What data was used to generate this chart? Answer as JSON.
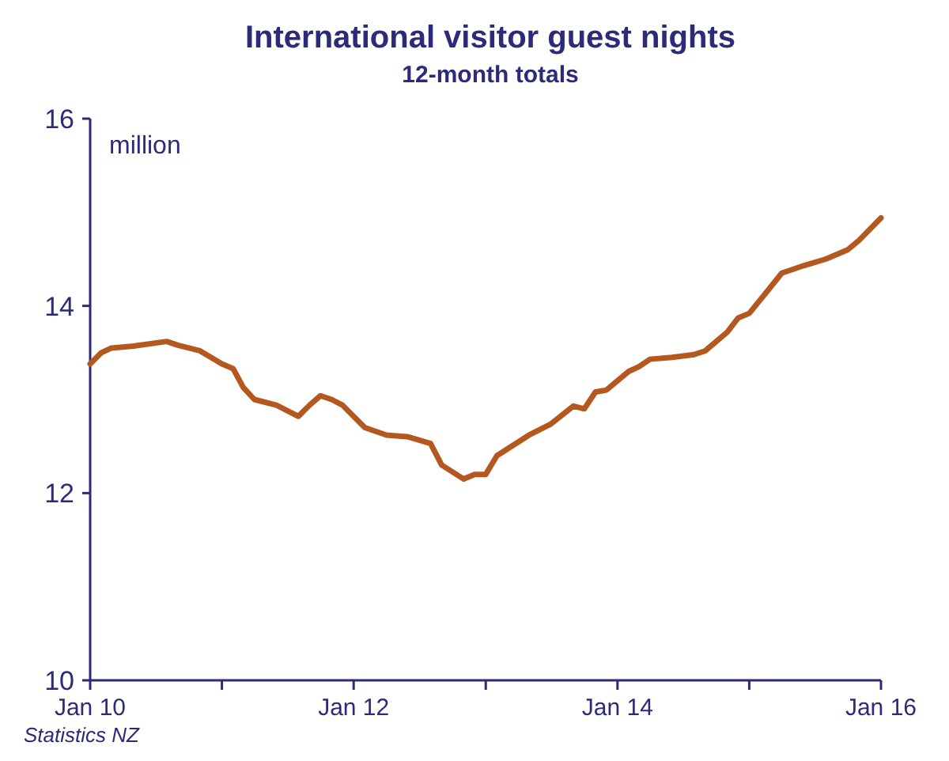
{
  "chart_data": {
    "type": "line",
    "title": "International visitor guest nights",
    "subtitle": "12-month totals",
    "ylabel": "million",
    "annotations": [
      "Statistics NZ"
    ],
    "x": [
      "2010-01",
      "2010-02",
      "2010-03",
      "2010-05",
      "2010-08",
      "2010-09",
      "2010-11",
      "2011-01",
      "2011-02",
      "2011-03",
      "2011-04",
      "2011-06",
      "2011-08",
      "2011-09",
      "2011-10",
      "2011-11",
      "2011-12",
      "2012-02",
      "2012-04",
      "2012-06",
      "2012-08",
      "2012-09",
      "2012-11",
      "2012-12",
      "2013-01",
      "2013-02",
      "2013-05",
      "2013-07",
      "2013-09",
      "2013-10",
      "2013-11",
      "2013-12",
      "2014-02",
      "2014-03",
      "2014-04",
      "2014-06",
      "2014-08",
      "2014-09",
      "2014-11",
      "2014-12",
      "2015-01",
      "2015-03",
      "2015-04",
      "2015-06",
      "2015-08",
      "2015-10",
      "2015-11",
      "2016-01"
    ],
    "series": [
      {
        "color": "#b5581f",
        "values": [
          13.38,
          13.5,
          13.55,
          13.57,
          13.62,
          13.58,
          13.52,
          13.38,
          13.33,
          13.13,
          13.0,
          12.94,
          12.82,
          12.94,
          13.04,
          13.0,
          12.94,
          12.7,
          12.62,
          12.6,
          12.53,
          12.3,
          12.15,
          12.2,
          12.2,
          12.4,
          12.62,
          12.74,
          12.93,
          12.9,
          13.08,
          13.1,
          13.3,
          13.35,
          13.43,
          13.45,
          13.48,
          13.52,
          13.72,
          13.87,
          13.92,
          14.2,
          14.35,
          14.43,
          14.5,
          14.6,
          14.7,
          14.94
        ]
      }
    ],
    "xlim": [
      "2010-01",
      "2016-01"
    ],
    "xticks": [
      {
        "value": "2010-01",
        "label": "Jan 10"
      },
      {
        "value": "2011-01",
        "label": null
      },
      {
        "value": "2012-01",
        "label": "Jan 12"
      },
      {
        "value": "2013-01",
        "label": null
      },
      {
        "value": "2014-01",
        "label": "Jan 14"
      },
      {
        "value": "2015-01",
        "label": null
      },
      {
        "value": "2016-01",
        "label": "Jan 16"
      }
    ],
    "ylim": [
      10,
      16
    ],
    "yticks": [
      10,
      12,
      14,
      16
    ],
    "grid": false,
    "marker": "none",
    "line_style": "solid"
  }
}
